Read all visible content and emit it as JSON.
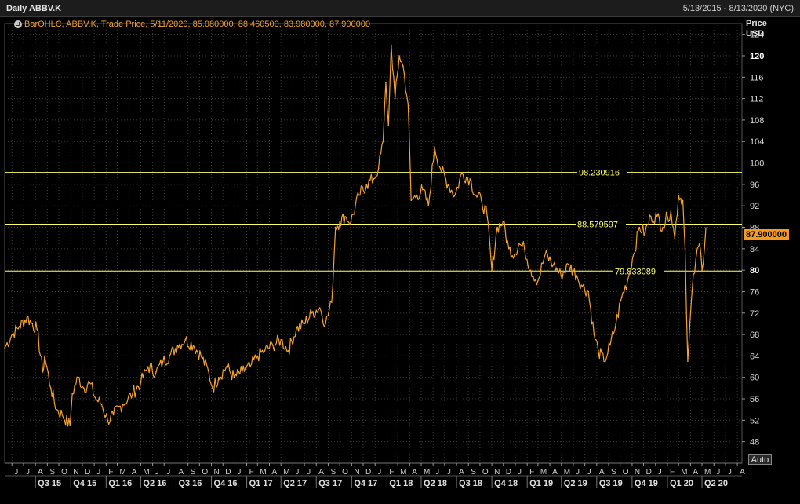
{
  "header": {
    "title": "Daily ABBV.K",
    "date_range": "5/13/2015 - 8/13/2020 (NYC)"
  },
  "legend": {
    "text": "BarOHLC, ABBV.K, Trade Price, 5/11/2020, 85.080000, 88.460500, 83.980000, 87.900000"
  },
  "axis": {
    "ylabel_line1": "Price",
    "ylabel_line2": "USD",
    "auto_button": "Auto"
  },
  "last_price": "87.900000",
  "colors": {
    "background": "#000000",
    "series": "#f5a32a",
    "level_lines": "#ffff66",
    "grid": "#3c3c3c",
    "last_price_badge": "#f59a1f"
  },
  "chart_data": {
    "type": "line",
    "title": "Daily ABBV.K",
    "ylabel": "Price USD",
    "ylim": [
      44,
      126
    ],
    "yticks": [
      48,
      52,
      56,
      60,
      64,
      68,
      72,
      76,
      80,
      84,
      88,
      92,
      96,
      100,
      104,
      108,
      112,
      116,
      120,
      124
    ],
    "ytick_bold": [
      80,
      120
    ],
    "xlim": [
      "2015-05-13",
      "2020-08-13"
    ],
    "grid": true,
    "month_ticks": [
      "J",
      "J",
      "A",
      "S",
      "O",
      "N",
      "D",
      "J",
      "F",
      "M",
      "A",
      "M",
      "J",
      "J",
      "A",
      "S",
      "O",
      "N",
      "D",
      "J",
      "F",
      "M",
      "A",
      "M",
      "J",
      "J",
      "A",
      "S",
      "O",
      "N",
      "D",
      "J",
      "F",
      "M",
      "A",
      "M",
      "J",
      "J",
      "A",
      "S",
      "O",
      "N",
      "D",
      "J",
      "F",
      "M",
      "A",
      "M",
      "J",
      "J",
      "A",
      "S",
      "O",
      "N",
      "D",
      "J",
      "F",
      "M",
      "A",
      "M",
      "J",
      "J",
      "A"
    ],
    "quarter_ticks": [
      {
        "label": "Q3 15",
        "first_month": 2
      },
      {
        "label": "Q4 15",
        "first_month": 5
      },
      {
        "label": "Q1 16",
        "first_month": 8
      },
      {
        "label": "Q2 16",
        "first_month": 11
      },
      {
        "label": "Q3 16",
        "first_month": 14
      },
      {
        "label": "Q4 16",
        "first_month": 17
      },
      {
        "label": "Q1 17",
        "first_month": 20
      },
      {
        "label": "Q2 17",
        "first_month": 23
      },
      {
        "label": "Q3 17",
        "first_month": 26
      },
      {
        "label": "Q4 17",
        "first_month": 29
      },
      {
        "label": "Q1 18",
        "first_month": 32
      },
      {
        "label": "Q2 18",
        "first_month": 35
      },
      {
        "label": "Q3 18",
        "first_month": 38
      },
      {
        "label": "Q4 18",
        "first_month": 41
      },
      {
        "label": "Q1 19",
        "first_month": 44
      },
      {
        "label": "Q2 19",
        "first_month": 47
      },
      {
        "label": "Q3 19",
        "first_month": 50
      },
      {
        "label": "Q4 19",
        "first_month": 53
      },
      {
        "label": "Q1 20",
        "first_month": 56
      },
      {
        "label": "Q2 20",
        "first_month": 59
      }
    ],
    "levels": [
      {
        "value": 98.230916,
        "label": "98.230916"
      },
      {
        "value": 88.579597,
        "label": "88.579597"
      },
      {
        "value": 79.833089,
        "label": "79.833089"
      }
    ],
    "series": [
      {
        "x": [
          "2015-05-13",
          "2015-06-01",
          "2015-06-20",
          "2015-07-10",
          "2015-07-24",
          "2015-08-05",
          "2015-08-20",
          "2015-08-25",
          "2015-09-10",
          "2015-09-25",
          "2015-10-10",
          "2015-10-30",
          "2015-11-05",
          "2015-11-20",
          "2015-12-05",
          "2015-12-20",
          "2016-01-05",
          "2016-01-20",
          "2016-02-05",
          "2016-02-20",
          "2016-03-15",
          "2016-04-10",
          "2016-05-01",
          "2016-05-20",
          "2016-06-10",
          "2016-06-28",
          "2016-07-15",
          "2016-08-05",
          "2016-08-25",
          "2016-09-15",
          "2016-10-05",
          "2016-10-25",
          "2016-11-04",
          "2016-11-20",
          "2016-12-10",
          "2016-12-30",
          "2017-01-20",
          "2017-02-10",
          "2017-03-01",
          "2017-03-20",
          "2017-04-10",
          "2017-05-01",
          "2017-05-20",
          "2017-06-10",
          "2017-06-30",
          "2017-07-20",
          "2017-08-10",
          "2017-08-25",
          "2017-09-10",
          "2017-09-20",
          "2017-10-01",
          "2017-10-15",
          "2017-10-30",
          "2017-11-20",
          "2017-12-10",
          "2017-12-28",
          "2018-01-10",
          "2018-01-22",
          "2018-01-29",
          "2018-02-05",
          "2018-02-12",
          "2018-02-22",
          "2018-03-05",
          "2018-03-15",
          "2018-03-28",
          "2018-04-05",
          "2018-04-20",
          "2018-05-05",
          "2018-05-20",
          "2018-06-05",
          "2018-06-20",
          "2018-07-10",
          "2018-07-28",
          "2018-08-15",
          "2018-09-05",
          "2018-09-20",
          "2018-10-05",
          "2018-10-20",
          "2018-11-01",
          "2018-11-15",
          "2018-11-30",
          "2018-12-15",
          "2018-12-30",
          "2019-01-10",
          "2019-01-25",
          "2019-02-10",
          "2019-03-01",
          "2019-03-20",
          "2019-04-10",
          "2019-04-30",
          "2019-05-20",
          "2019-06-10",
          "2019-06-25",
          "2019-07-10",
          "2019-07-25",
          "2019-08-05",
          "2019-08-20",
          "2019-09-05",
          "2019-09-20",
          "2019-10-05",
          "2019-10-20",
          "2019-11-05",
          "2019-11-20",
          "2019-12-05",
          "2019-12-20",
          "2020-01-05",
          "2020-01-20",
          "2020-02-01",
          "2020-02-10",
          "2020-02-20",
          "2020-03-01",
          "2020-03-12",
          "2020-03-18",
          "2020-03-25",
          "2020-04-05",
          "2020-04-15",
          "2020-04-25",
          "2020-05-01",
          "2020-05-11"
        ],
        "values": [
          65.5,
          68,
          69.5,
          71.2,
          70,
          69,
          61,
          64,
          58,
          54,
          53,
          51,
          57,
          60,
          58,
          59,
          56,
          55,
          52,
          53,
          55,
          57,
          59,
          62,
          61,
          63,
          64,
          66,
          67,
          66,
          64,
          61,
          58,
          60,
          62,
          60,
          61,
          62,
          64,
          65,
          66,
          67,
          65,
          69,
          70,
          72,
          73,
          70,
          74,
          88,
          89,
          90,
          89,
          94,
          96,
          97,
          99,
          104,
          115,
          107,
          122,
          112,
          120,
          118,
          111,
          93,
          94,
          95,
          92,
          103,
          99,
          96,
          94,
          98,
          97,
          94,
          93,
          90,
          80,
          88,
          89,
          84,
          83,
          85,
          84,
          80,
          78,
          83,
          81,
          79,
          81,
          79,
          77,
          76,
          68,
          65,
          63,
          66,
          70,
          75,
          78,
          83,
          88,
          87,
          90,
          90,
          88,
          90,
          91,
          86,
          94,
          93,
          84,
          63,
          76,
          82,
          85,
          80,
          87.9
        ]
      }
    ]
  }
}
